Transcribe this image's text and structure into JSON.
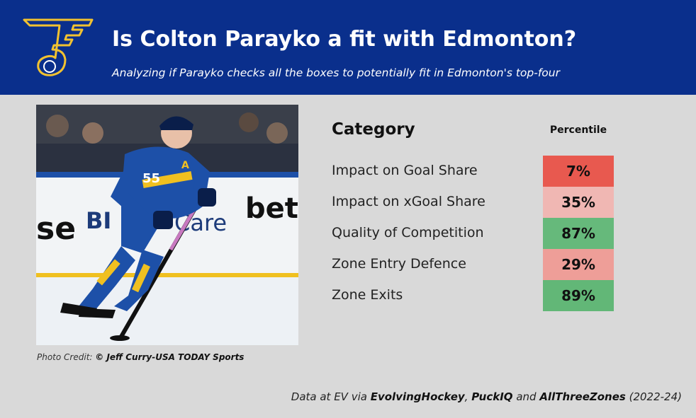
{
  "header": {
    "title": "Is Colton Parayko a fit with Edmonton?",
    "subtitle": "Analyzing if Parayko checks all the boxes to potentially fit in Edmonton's top-four",
    "logo_icon": "blues-note-icon",
    "bg_color": "#0a2f8c"
  },
  "photo": {
    "credit_prefix": "Photo Credit: ",
    "credit_name": "© Jeff Curry-USA TODAY Sports",
    "board_text_1": "betway",
    "board_text_2": "Care",
    "board_text_3": "se",
    "board_text_4": "BI",
    "jersey_number": "55",
    "captain_letter": "A"
  },
  "table": {
    "category_header": "Category",
    "percentile_header": "Percentile",
    "rows": [
      {
        "label": "Impact on Goal Share",
        "value": "7%",
        "color": "#e8594f"
      },
      {
        "label": "Impact on xGoal Share",
        "value": "35%",
        "color": "#f0b7b3"
      },
      {
        "label": "Quality of Competition",
        "value": "87%",
        "color": "#66b97b"
      },
      {
        "label": "Zone Entry Defence",
        "value": "29%",
        "color": "#ee9e98"
      },
      {
        "label": "Zone Exits",
        "value": "89%",
        "color": "#62b777"
      }
    ]
  },
  "footer": {
    "part1": "Data at EV via ",
    "source1": "EvolvingHockey",
    "sep1": ", ",
    "source2": "PuckIQ",
    "sep2": " and ",
    "source3": "AllThreeZones",
    "years": " (2022-24)"
  }
}
